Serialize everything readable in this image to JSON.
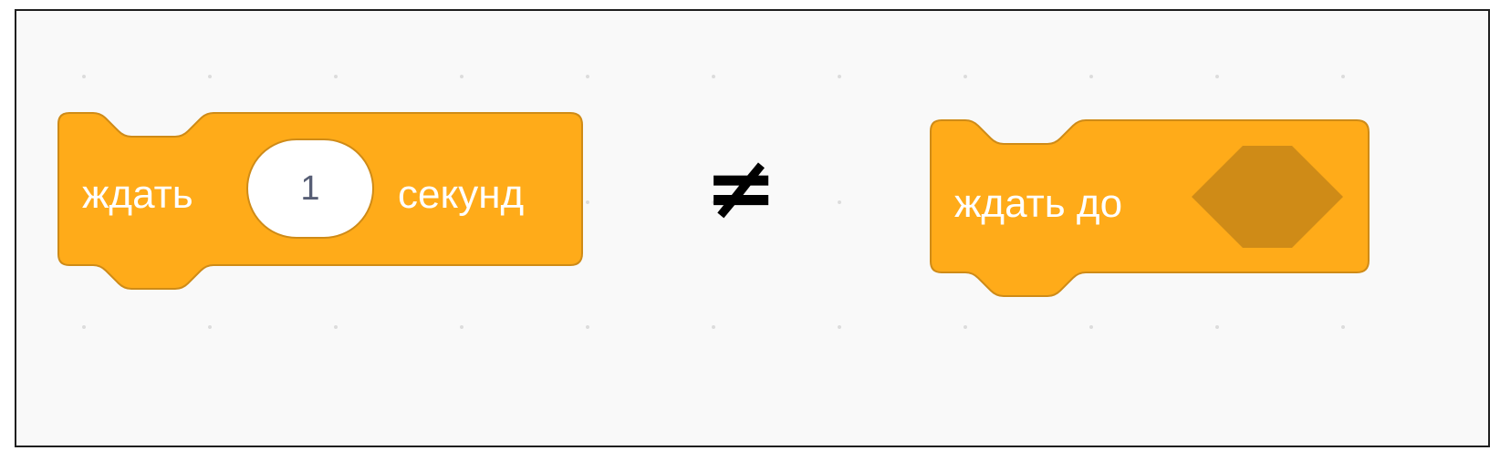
{
  "blocks": {
    "wait_seconds": {
      "prefix": "ждать",
      "input_value": "1",
      "suffix": "секунд"
    },
    "wait_until": {
      "label": "ждать до"
    }
  },
  "relation_symbol": "≠",
  "colors": {
    "block_fill": "#ffab19",
    "block_stroke": "#cf8b17",
    "slot_fill": "#cf8b17",
    "canvas": "#f9f9f9",
    "grid_dot": "#dcdcdc"
  }
}
